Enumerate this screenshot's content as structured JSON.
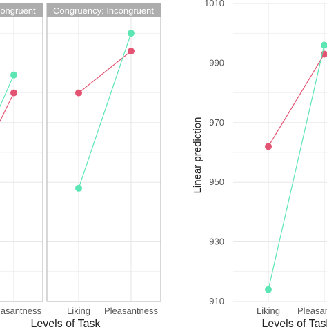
{
  "chart_data": [
    {
      "type": "line",
      "panel": "left-facet-partial",
      "strip_label": "ongruent",
      "categories": [
        "",
        "asantness"
      ],
      "xlabel": "",
      "ylabel": "",
      "ylim": [
        910,
        1010
      ],
      "grid": true,
      "series": [
        {
          "color": "#E35472",
          "values": [
            961,
            980
          ]
        },
        {
          "color": "#5CE6B4",
          "values": [
            965,
            986
          ]
        }
      ]
    },
    {
      "type": "line",
      "panel": "middle-facet",
      "strip_label": "Congruency: Incongruent",
      "categories": [
        "Liking",
        "Pleasantness"
      ],
      "xlabel": "Levels of Task",
      "ylabel": "",
      "ylim": [
        910,
        1010
      ],
      "grid": true,
      "series": [
        {
          "color": "#E35472",
          "values": [
            980,
            994
          ]
        },
        {
          "color": "#5CE6B4",
          "values": [
            948,
            1000
          ]
        }
      ]
    },
    {
      "type": "line",
      "panel": "right-plot",
      "categories": [
        "Liking",
        "Pleasantness"
      ],
      "xlabel": "Levels of Task",
      "ylabel": "Linear prediction",
      "yticks": [
        910,
        930,
        950,
        970,
        990,
        1010
      ],
      "ylim": [
        910,
        1010
      ],
      "grid": true,
      "series": [
        {
          "color": "#E35472",
          "values": [
            962,
            993
          ]
        },
        {
          "color": "#5CE6B4",
          "values": [
            914,
            996
          ]
        }
      ]
    }
  ]
}
